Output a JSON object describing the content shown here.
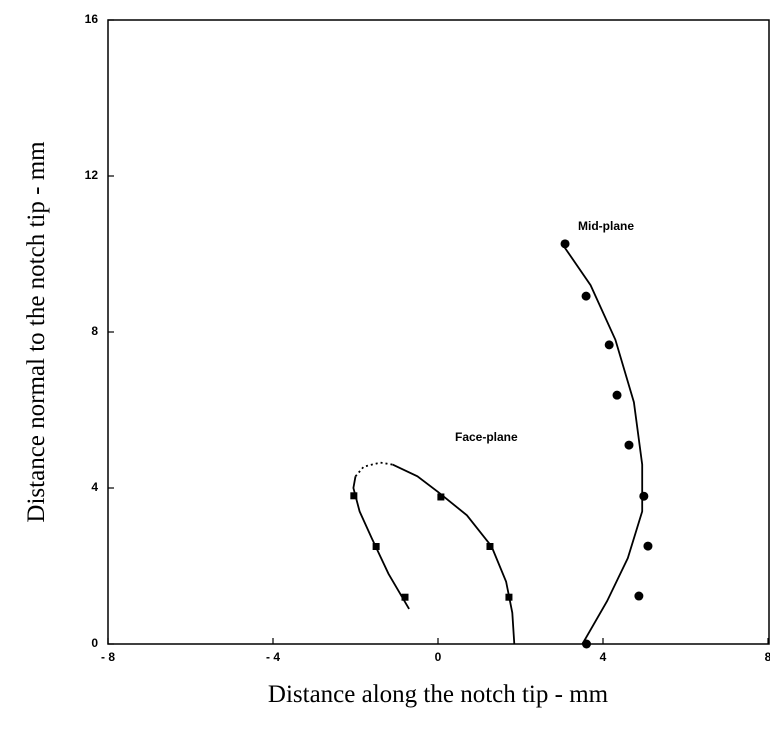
{
  "chart_data": {
    "type": "scatter",
    "xlabel": "Distance along the notch tip - mm",
    "ylabel": "Distance normal to the notch tip - mm",
    "xlim": [
      -8,
      8
    ],
    "ylim": [
      0,
      16
    ],
    "xticks": [
      {
        "value": -8,
        "label": "- 8"
      },
      {
        "value": -4,
        "label": "- 4"
      },
      0,
      4,
      8
    ],
    "yticks": [
      0,
      4,
      8,
      12,
      16
    ],
    "color": "#000000",
    "series": [
      {
        "name": "Mid-plane",
        "marker": "circle",
        "x": [
          3.08,
          3.59,
          4.15,
          4.34,
          4.63,
          4.99,
          5.09,
          4.87,
          3.6
        ],
        "values": [
          10.26,
          8.92,
          7.67,
          6.38,
          5.1,
          3.79,
          2.51,
          1.23,
          0
        ]
      },
      {
        "name": "Face-plane",
        "marker": "square",
        "x": [
          -2.04,
          -1.5,
          -0.8,
          0.07,
          1.26,
          1.72
        ],
        "values": [
          3.8,
          2.5,
          1.2,
          3.77,
          2.5,
          1.2
        ]
      }
    ],
    "curves": [
      {
        "dashed": false,
        "x": [
          3.05,
          3.7,
          4.3,
          4.75,
          4.95,
          4.95,
          4.6,
          4.1,
          3.5
        ],
        "values": [
          10.2,
          9.2,
          7.8,
          6.2,
          4.6,
          3.4,
          2.2,
          1.1,
          0
        ]
      },
      {
        "dashed": false,
        "x": [
          -0.7,
          -1.2,
          -1.6,
          -1.9,
          -2.05,
          -2.0
        ],
        "values": [
          0.9,
          1.8,
          2.7,
          3.4,
          4.0,
          4.3
        ]
      },
      {
        "dashed": true,
        "x": [
          -2.0,
          -1.8,
          -1.4,
          -1.1
        ],
        "values": [
          4.3,
          4.55,
          4.65,
          4.6
        ]
      },
      {
        "dashed": false,
        "x": [
          -1.1,
          -0.5,
          0,
          0.7,
          1.3,
          1.65,
          1.8,
          1.85
        ],
        "values": [
          4.6,
          4.3,
          3.9,
          3.3,
          2.5,
          1.6,
          0.8,
          0
        ]
      }
    ]
  }
}
